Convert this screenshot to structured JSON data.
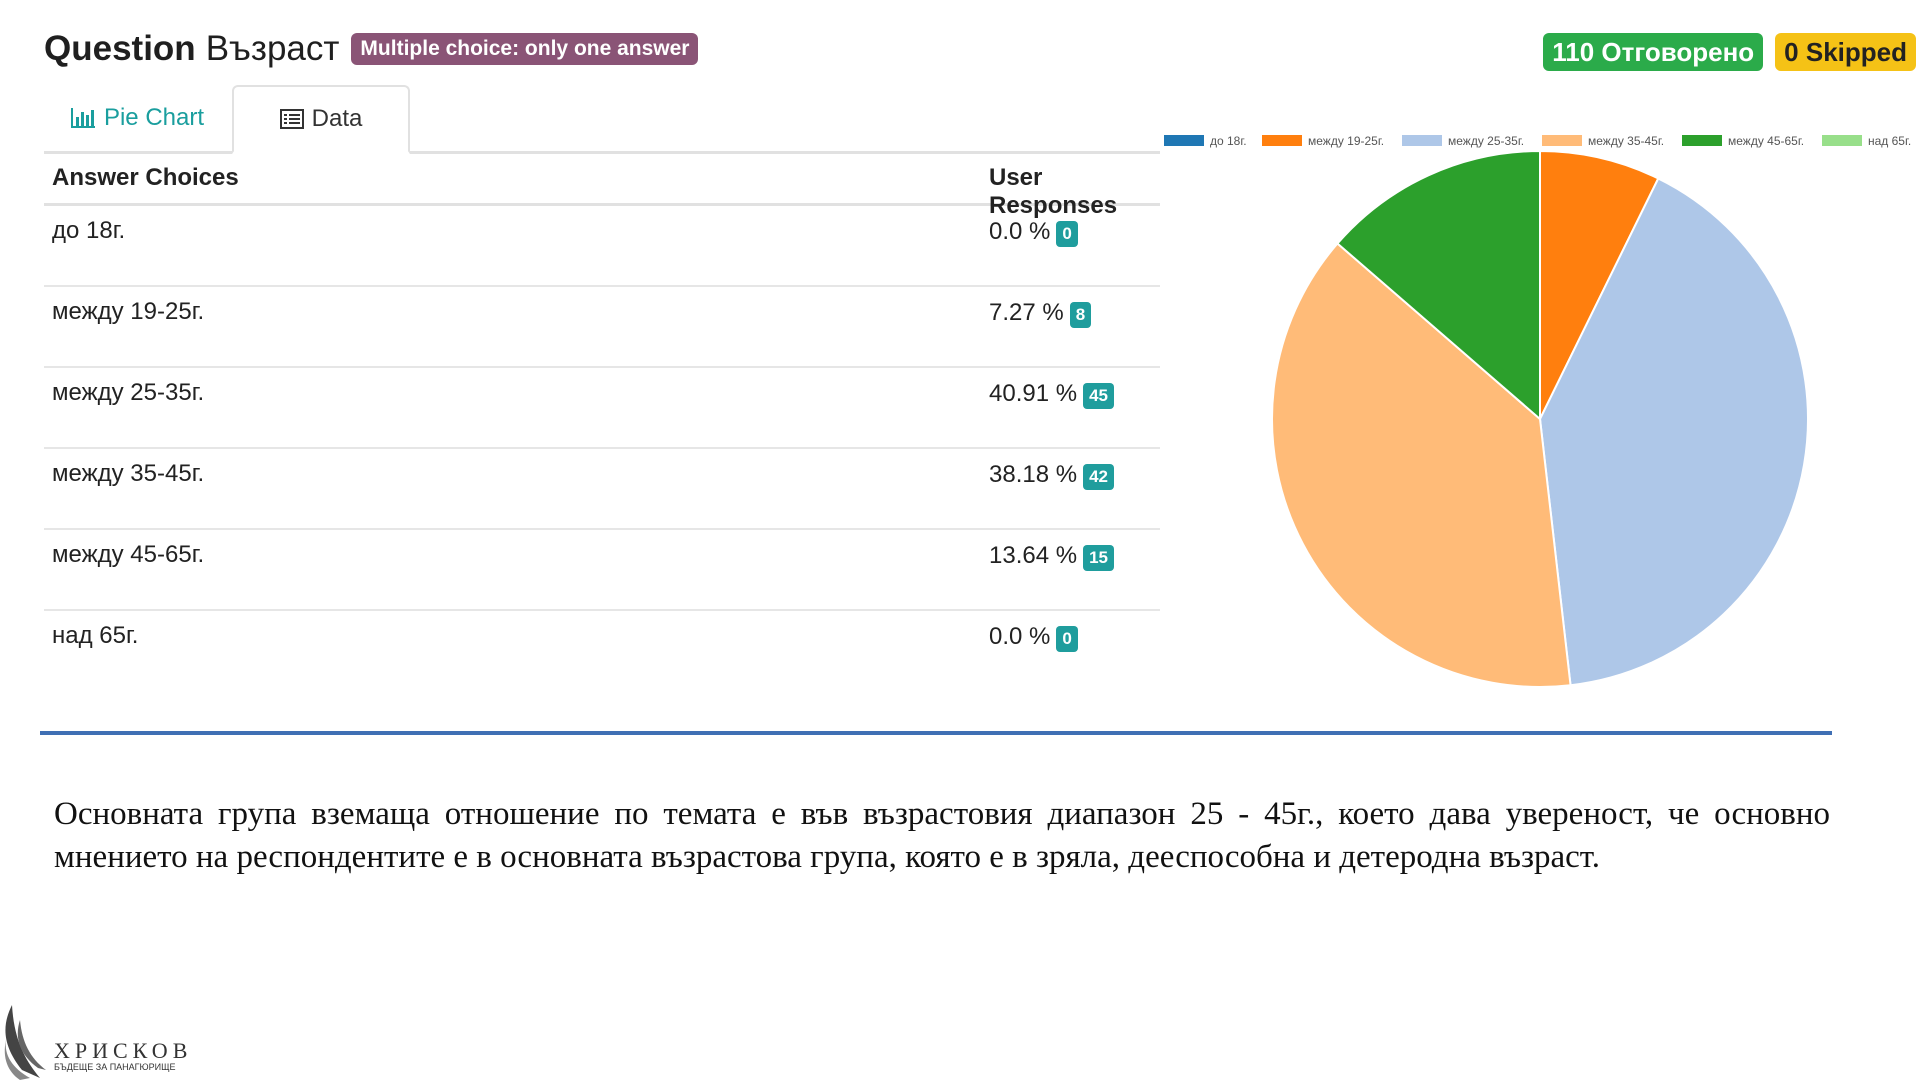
{
  "header": {
    "question_word": "Question",
    "question_text": "Възраст",
    "type_badge": "Multiple choice: only one answer",
    "answered": "110 Отговорено",
    "skipped": "0 Skipped"
  },
  "tabs": [
    {
      "label": "Pie Chart",
      "icon": "bar-chart-icon"
    },
    {
      "label": "Data",
      "icon": "list-icon"
    }
  ],
  "table": {
    "headers": [
      "Answer Choices",
      "User Responses"
    ],
    "rows": [
      {
        "label": "до 18г.",
        "percent": "0.0 %",
        "count": "0"
      },
      {
        "label": "между 19-25г.",
        "percent": "7.27 %",
        "count": "8"
      },
      {
        "label": "между 25-35г.",
        "percent": "40.91 %",
        "count": "45"
      },
      {
        "label": "между 35-45г.",
        "percent": "38.18 %",
        "count": "42"
      },
      {
        "label": "между 45-65г.",
        "percent": "13.64 %",
        "count": "15"
      },
      {
        "label": "над 65г.",
        "percent": "0.0 %",
        "count": "0"
      }
    ]
  },
  "chart_data": {
    "type": "pie",
    "categories": [
      "до 18г.",
      "между 19-25г.",
      "между 25-35г.",
      "между 35-45г.",
      "между 45-65г.",
      "над 65г."
    ],
    "values": [
      0,
      8,
      45,
      42,
      15,
      0
    ],
    "colors": [
      "#1f77b4",
      "#ff7f0e",
      "#aec7e8",
      "#ffbb78",
      "#2ca02c",
      "#98df8a"
    ],
    "legend_position": "top"
  },
  "paragraph": "Основната група вземаща отношение по темата е във възрастовия диапазон 25 - 45г., което дава увереност, че основно мнението на респондентите е в основната възрастова група, която е в зряла, дееспособна и детеродна възраст.",
  "logo": {
    "name": "ХРИСКОВ",
    "tagline": "БЪДЕЩЕ ЗА ПАНАГЮРИЩЕ"
  }
}
